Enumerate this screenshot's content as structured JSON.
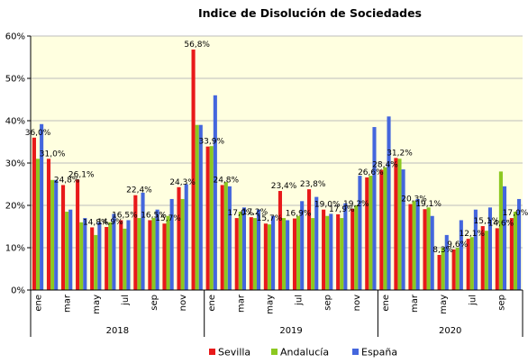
{
  "chart_data": {
    "type": "bar",
    "title": "Indice de Disolución de Sociedades",
    "xlabel": "",
    "ylabel": "",
    "ylim": [
      0,
      60
    ],
    "yticks": [
      "0%",
      "10%",
      "20%",
      "30%",
      "40%",
      "50%",
      "60%"
    ],
    "grid": true,
    "legend_position": "bottom",
    "colors": {
      "plot_bg": "#ffffe0",
      "grid": "#bdbdbd",
      "Sevilla": "#e8191a",
      "Andalucía": "#8cc820",
      "España": "#4466dd"
    },
    "x_tick_labels": [
      "ene",
      "",
      "mar",
      "",
      "may",
      "",
      "jul",
      "",
      "sep",
      "",
      "nov",
      "",
      "ene",
      "",
      "mar",
      "",
      "may",
      "",
      "jul",
      "",
      "sep",
      "",
      "nov",
      "",
      "ene",
      "",
      "mar",
      "",
      "may",
      "",
      "jul",
      "",
      "sep",
      ""
    ],
    "years": [
      {
        "label": "2018",
        "start": 0,
        "count": 12
      },
      {
        "label": "2019",
        "start": 12,
        "count": 12
      },
      {
        "label": "2020",
        "start": 24,
        "count": 10
      }
    ],
    "series": [
      {
        "name": "Sevilla",
        "values": [
          36.0,
          31.0,
          24.8,
          26.1,
          14.8,
          14.9,
          16.5,
          22.4,
          16.5,
          15.7,
          24.3,
          56.8,
          33.9,
          24.8,
          17.0,
          17.2,
          15.7,
          23.4,
          16.9,
          23.8,
          19.0,
          17.9,
          19.2,
          26.6,
          28.4,
          31.2,
          20.3,
          19.1,
          8.3,
          9.6,
          12.1,
          15.1,
          14.6,
          17.0
        ]
      },
      {
        "name": "Andalucía",
        "values": [
          31.0,
          26.0,
          18.5,
          16.0,
          13.0,
          16.0,
          14.5,
          17.0,
          17.0,
          17.5,
          21.5,
          39.0,
          34.0,
          25.5,
          18.5,
          17.0,
          15.5,
          17.0,
          17.5,
          17.0,
          17.5,
          17.0,
          20.0,
          27.0,
          29.0,
          31.0,
          21.0,
          19.5,
          10.0,
          10.0,
          12.5,
          14.0,
          28.0,
          18.5
        ]
      },
      {
        "name": "España",
        "values": [
          39.2,
          26.0,
          19.0,
          17.0,
          16.0,
          18.0,
          16.5,
          23.0,
          19.0,
          21.5,
          25.0,
          39.0,
          46.0,
          24.5,
          19.5,
          19.0,
          17.5,
          16.5,
          21.0,
          22.0,
          18.0,
          20.5,
          27.0,
          38.5,
          41.0,
          28.5,
          21.5,
          17.5,
          13.0,
          16.5,
          19.0,
          19.5,
          24.5,
          21.5
        ]
      }
    ],
    "data_labels": [
      {
        "i": 0,
        "text": "36,0%"
      },
      {
        "i": 1,
        "text": "31,0%"
      },
      {
        "i": 2,
        "text": "24,8%"
      },
      {
        "i": 3,
        "text": "26,1%"
      },
      {
        "i": 4,
        "text": "14,8%"
      },
      {
        "i": 5,
        "text": "14,9%"
      },
      {
        "i": 6,
        "text": "16,5%"
      },
      {
        "i": 7,
        "text": "22,4%"
      },
      {
        "i": 8,
        "text": "16,5%"
      },
      {
        "i": 9,
        "text": "15,7%"
      },
      {
        "i": 10,
        "text": "24,3%"
      },
      {
        "i": 11,
        "text": "56,8%"
      },
      {
        "i": 12,
        "text": "33,9%"
      },
      {
        "i": 13,
        "text": "24,8%"
      },
      {
        "i": 14,
        "text": "17,0%"
      },
      {
        "i": 15,
        "text": "17,2%"
      },
      {
        "i": 16,
        "text": "15,7%"
      },
      {
        "i": 17,
        "text": "23,4%"
      },
      {
        "i": 18,
        "text": "16,9%"
      },
      {
        "i": 19,
        "text": "23,8%"
      },
      {
        "i": 20,
        "text": "19,0%"
      },
      {
        "i": 21,
        "text": "17,9%"
      },
      {
        "i": 22,
        "text": "19,2%"
      },
      {
        "i": 23,
        "text": "26,6%"
      },
      {
        "i": 24,
        "text": "28,4%"
      },
      {
        "i": 25,
        "text": "31,2%"
      },
      {
        "i": 26,
        "text": "20,3%"
      },
      {
        "i": 27,
        "text": "19,1%"
      },
      {
        "i": 28,
        "text": "8,3%"
      },
      {
        "i": 29,
        "text": "9,6%"
      },
      {
        "i": 30,
        "text": "12,1%"
      },
      {
        "i": 31,
        "text": "15,1%"
      },
      {
        "i": 32,
        "text": "14,6%"
      },
      {
        "i": 33,
        "text": "17,0%"
      }
    ]
  }
}
